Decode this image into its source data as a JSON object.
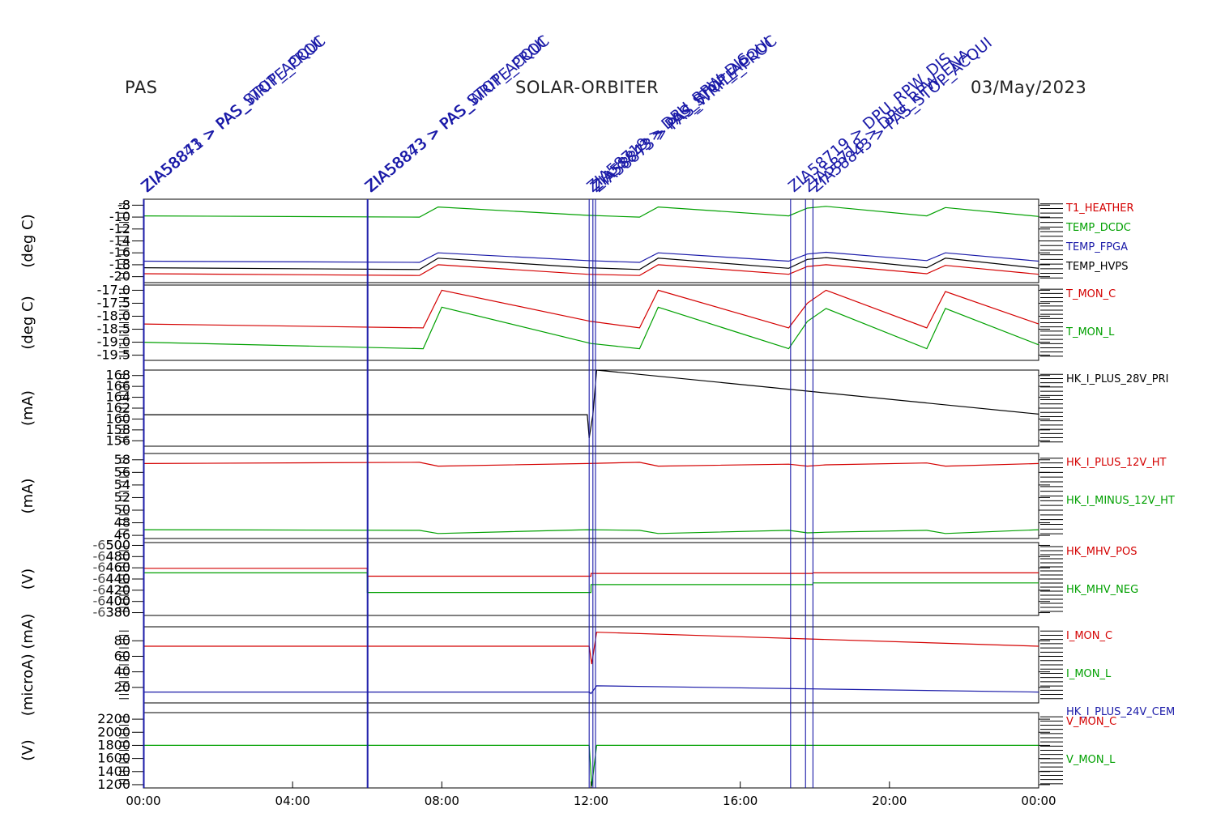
{
  "header": {
    "instrument": "PAS",
    "mission": "SOLAR-ORBITER",
    "date": "03/May/2023"
  },
  "colors": {
    "red": "#d40000",
    "green": "#00a000",
    "blue": "#1a1aa8",
    "black": "#000000",
    "axis": "#000000"
  },
  "chart_data": {
    "type": "line",
    "x_axis": {
      "range_hours": [
        0,
        24
      ],
      "ticks": [
        {
          "h": 0,
          "label": "00:00"
        },
        {
          "h": 4,
          "label": "04:00"
        },
        {
          "h": 8,
          "label": "08:00"
        },
        {
          "h": 12,
          "label": "12:00"
        },
        {
          "h": 16,
          "label": "16:00"
        },
        {
          "h": 20,
          "label": "20:00"
        },
        {
          "h": 24,
          "label": "00:00"
        }
      ]
    },
    "events": [
      {
        "h": 0.0,
        "label": "ZIA58843 > PAS_STOP_ACQUI",
        "color": "blue"
      },
      {
        "h": 0.02,
        "label": "ZIA58871 > PAS_WRITE_PROC",
        "color": "blue"
      },
      {
        "h": 6.0,
        "label": "ZIA58843 > PAS_STOP_ACQUI",
        "color": "blue"
      },
      {
        "h": 6.02,
        "label": "ZIA58873 > PAS_WRITE_PROC",
        "color": "blue"
      },
      {
        "h": 11.95,
        "label": "ZIA58719 > DPU_RPW_DIS",
        "color": "blue"
      },
      {
        "h": 12.05,
        "label": "ZIA58843 > PAS_STOP_ACQUI",
        "color": "blue"
      },
      {
        "h": 12.12,
        "label": "ZIA58873 > PAS_WRITE_PROC",
        "color": "blue"
      },
      {
        "h": 17.35,
        "label": "ZIA58719 > DPU_RPW_DIS",
        "color": "blue"
      },
      {
        "h": 17.75,
        "label": "ZIA58718 > DPU_RPW_ENA",
        "color": "blue"
      },
      {
        "h": 17.95,
        "label": "ZIA58843 > PAS_STOP_ACQUI",
        "color": "blue"
      }
    ],
    "panels": [
      {
        "ylabel": "(deg C)",
        "yrange": [
          -21,
          -7
        ],
        "yticks": [
          -8,
          -10,
          -12,
          -14,
          -16,
          -18,
          -20
        ],
        "tick_labels": [
          "-8",
          "-10",
          "-12",
          "-14",
          "-16",
          "-18",
          "-20"
        ],
        "series": [
          {
            "name": "T1_HEATHER",
            "color": "red",
            "x": [
              0,
              7.4,
              7.9,
              11.9,
              13.3,
              13.8,
              17.3,
              17.8,
              18.3,
              21.0,
              21.5,
              24
            ],
            "y": [
              -19.5,
              -19.8,
              -18.0,
              -19.6,
              -19.8,
              -18.0,
              -19.6,
              -18.3,
              -18.0,
              -19.5,
              -18.1,
              -19.6
            ]
          },
          {
            "name": "TEMP_DCDC",
            "color": "green",
            "x": [
              0,
              7.4,
              7.9,
              11.9,
              13.3,
              13.8,
              17.3,
              17.8,
              18.3,
              21.0,
              21.5,
              24
            ],
            "y": [
              -9.8,
              -10.0,
              -8.3,
              -9.7,
              -10.0,
              -8.3,
              -9.8,
              -8.5,
              -8.2,
              -9.8,
              -8.4,
              -9.9
            ]
          },
          {
            "name": "TEMP_FPGA",
            "color": "blue",
            "x": [
              0,
              7.4,
              7.9,
              11.9,
              13.3,
              13.8,
              17.3,
              17.8,
              18.3,
              21.0,
              21.5,
              24
            ],
            "y": [
              -17.4,
              -17.6,
              -16.0,
              -17.3,
              -17.6,
              -16.0,
              -17.4,
              -16.2,
              -15.9,
              -17.3,
              -16.0,
              -17.4
            ]
          },
          {
            "name": "TEMP_HVPS",
            "color": "black",
            "x": [
              0,
              7.4,
              7.9,
              11.9,
              13.3,
              13.8,
              17.3,
              17.8,
              18.3,
              21.0,
              21.5,
              24
            ],
            "y": [
              -18.5,
              -18.8,
              -16.9,
              -18.5,
              -18.8,
              -16.9,
              -18.6,
              -17.1,
              -16.8,
              -18.5,
              -16.9,
              -18.6
            ]
          }
        ]
      },
      {
        "ylabel": "(deg C)",
        "yrange": [
          -19.7,
          -16.8
        ],
        "yticks": [
          -17.0,
          -17.5,
          -18.0,
          -18.5,
          -19.0,
          -19.5
        ],
        "tick_labels": [
          "-17.0",
          "-17.5",
          "-18.0",
          "-18.5",
          "-19.0",
          "-19.5"
        ],
        "series": [
          {
            "name": "T_MON_C",
            "color": "red",
            "x": [
              0,
              7.5,
              8.0,
              12.0,
              13.3,
              13.8,
              17.3,
              17.8,
              18.3,
              21.0,
              21.5,
              24
            ],
            "y": [
              -18.3,
              -18.45,
              -17.0,
              -18.2,
              -18.45,
              -17.0,
              -18.45,
              -17.5,
              -17.0,
              -18.45,
              -17.05,
              -18.3
            ]
          },
          {
            "name": "T_MON_L",
            "color": "green",
            "x": [
              0,
              7.5,
              8.0,
              12.0,
              13.3,
              13.8,
              17.3,
              17.8,
              18.3,
              21.0,
              21.5,
              24
            ],
            "y": [
              -19.0,
              -19.25,
              -17.65,
              -19.05,
              -19.25,
              -17.65,
              -19.25,
              -18.2,
              -17.7,
              -19.25,
              -17.7,
              -19.1
            ]
          }
        ]
      },
      {
        "ylabel": "(mA)",
        "yrange": [
          155,
          169
        ],
        "yticks": [
          168,
          166,
          164,
          162,
          160,
          158,
          156
        ],
        "tick_labels": [
          "168",
          "166",
          "164",
          "162",
          "160",
          "158",
          "156"
        ],
        "series": [
          {
            "name": "HK_I_PLUS_28V_PRI",
            "color": "black",
            "x": [
              0,
              11.9,
              11.95,
              12.05,
              12.15,
              24
            ],
            "y": [
              160.8,
              160.8,
              156.5,
              160.8,
              169,
              160.9
            ]
          }
        ]
      },
      {
        "ylabel": "(mA)",
        "yrange": [
          45.5,
          59
        ],
        "yticks": [
          58,
          56,
          54,
          52,
          50,
          48,
          46
        ],
        "tick_labels": [
          "58",
          "56",
          "54",
          "52",
          "50",
          "48",
          "46"
        ],
        "series": [
          {
            "name": "HK_I_PLUS_12V_HT",
            "color": "red",
            "x": [
              0,
              7.4,
              7.9,
              11.9,
              13.3,
              13.8,
              17.3,
              17.8,
              18.3,
              21.0,
              21.5,
              24
            ],
            "y": [
              57.4,
              57.6,
              57.0,
              57.4,
              57.6,
              57.0,
              57.3,
              57.0,
              57.2,
              57.5,
              57.0,
              57.4
            ]
          },
          {
            "name": "HK_I_MINUS_12V_HT",
            "color": "green",
            "x": [
              0,
              7.4,
              7.9,
              11.9,
              13.3,
              13.8,
              17.3,
              17.8,
              18.3,
              21.0,
              21.5,
              24
            ],
            "y": [
              46.9,
              46.8,
              46.3,
              46.9,
              46.8,
              46.3,
              46.8,
              46.4,
              46.5,
              46.8,
              46.3,
              46.9
            ]
          }
        ]
      },
      {
        "ylabel": "(V)",
        "yrange": [
          375,
          505
        ],
        "yticks": [
          500,
          480,
          460,
          440,
          420,
          400,
          380
        ],
        "tick_labels": [
          "500",
          "480",
          "460",
          "440",
          "420",
          "400",
          "380"
        ],
        "right_tick_labels": [
          "-6500",
          "-6480",
          "-6460",
          "-6440",
          "-6420",
          "-6400",
          "-6380"
        ],
        "series": [
          {
            "name": "HK_MHV_POS",
            "color": "red",
            "x": [
              0,
              6.0,
              6.0,
              12.0,
              12.0,
              17.95,
              17.95,
              24
            ],
            "y": [
              459,
              459,
              445,
              445,
              450,
              450,
              451,
              451
            ]
          },
          {
            "name": "HK_MHV_NEG",
            "color": "green",
            "x": [
              0,
              6.0,
              6.0,
              12.0,
              12.0,
              17.95,
              17.95,
              24
            ],
            "y": [
              451,
              451,
              416,
              416,
              430,
              430,
              433,
              433
            ]
          }
        ]
      },
      {
        "ylabel": "(microA) (mA)",
        "yrange": [
          0,
          98
        ],
        "yticks": [
          80,
          60,
          40,
          20
        ],
        "tick_labels": [
          "80",
          "60",
          "40",
          "20"
        ],
        "series": [
          {
            "name": "I_MON_C",
            "color": "red",
            "x": [
              0,
              11.95,
              12.02,
              12.15,
              24
            ],
            "y": [
              73,
              73,
              50,
              91,
              73
            ]
          },
          {
            "name": "I_MON_L",
            "color": "green",
            "x": [],
            "y": []
          },
          {
            "name": "HK_I_PLUS_24V_CEM",
            "color": "blue",
            "x": [
              0,
              11.95,
              12.0,
              12.15,
              24
            ],
            "y": [
              14,
              14,
              12,
              22,
              14
            ]
          }
        ]
      },
      {
        "ylabel": "(V)",
        "yrange": [
          1150,
          2300
        ],
        "yticks": [
          2200,
          2000,
          1800,
          1600,
          1400,
          1200
        ],
        "tick_labels": [
          "2200",
          "2000",
          "1800",
          "1600",
          "1400",
          "1200"
        ],
        "series": [
          {
            "name": "V_MON_C",
            "color": "red",
            "x": [],
            "y": []
          },
          {
            "name": "V_MON_L",
            "color": "green",
            "x": [
              0,
              11.95,
              12.02,
              12.15,
              24
            ],
            "y": [
              1800,
              1800,
              1180,
              1800,
              1800
            ]
          }
        ]
      }
    ]
  }
}
